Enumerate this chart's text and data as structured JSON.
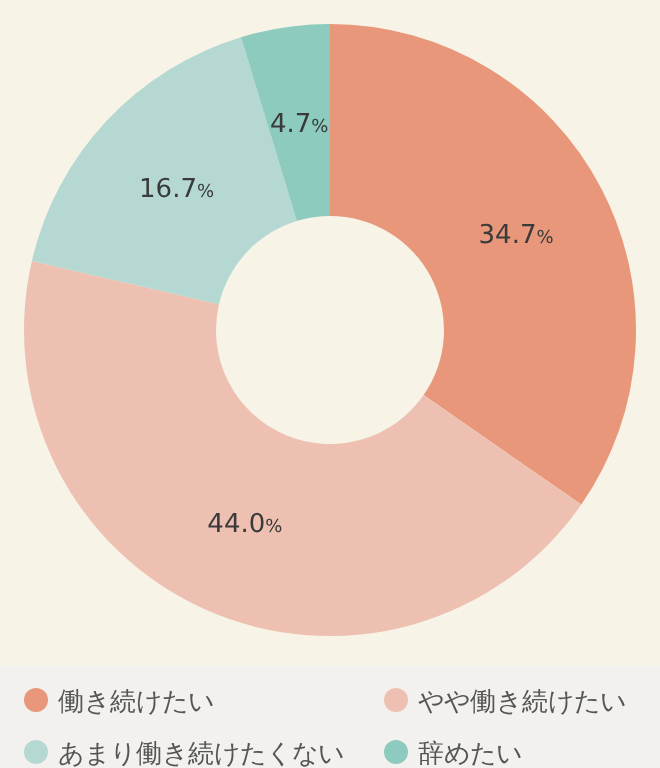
{
  "chart_data": {
    "type": "donut",
    "categories": [
      "働き続けたい",
      "やや働き続けたい",
      "あまり働き続けたくない",
      "辞めたい"
    ],
    "values": [
      34.7,
      44.0,
      16.7,
      4.7
    ],
    "colors": [
      "#e8977a",
      "#edc0b2",
      "#b5d9d2",
      "#8ccbbd"
    ],
    "value_labels": [
      "34.7%",
      "44.0%",
      "16.7%",
      "4.7%"
    ],
    "legend": "bottom"
  }
}
